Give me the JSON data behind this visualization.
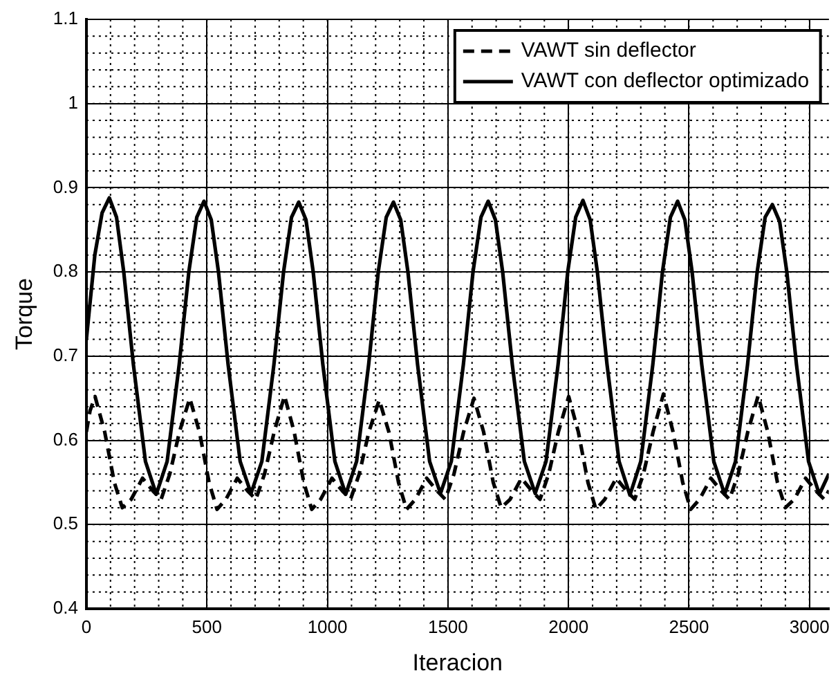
{
  "chart_data": {
    "type": "line",
    "xlabel": "Iteracion",
    "ylabel": "Torque",
    "xlim": [
      0,
      3080
    ],
    "xticks": [
      0,
      500,
      1000,
      1500,
      2000,
      2500,
      3000
    ],
    "ylim": [
      0.4,
      1.1
    ],
    "yticks": [
      0.4,
      0.5,
      0.6,
      0.7,
      0.8,
      0.9,
      1,
      1.1
    ],
    "grid": true,
    "legend": "top right",
    "marker": "none",
    "series": [
      {
        "name": "VAWT sin deflector",
        "color": "#000000",
        "line_style": "dashed",
        "x": [
          0,
          15,
          36,
          76,
          116,
          149,
          186,
          233,
          276,
          310,
          346,
          386,
          429,
          469,
          509,
          542,
          579,
          626,
          669,
          703,
          739,
          779,
          822,
          862,
          902,
          935,
          972,
          1019,
          1062,
          1096,
          1132,
          1172,
          1215,
          1255,
          1295,
          1328,
          1365,
          1412,
          1455,
          1489,
          1525,
          1565,
          1608,
          1648,
          1688,
          1721,
          1758,
          1805,
          1848,
          1882,
          1918,
          1958,
          2001,
          2041,
          2081,
          2114,
          2151,
          2198,
          2241,
          2275,
          2311,
          2351,
          2394,
          2434,
          2474,
          2507,
          2544,
          2591,
          2634,
          2668,
          2704,
          2744,
          2787,
          2827,
          2867,
          2900,
          2937,
          2984,
          3027,
          3061,
          3080
        ],
        "values": [
          0.61,
          0.635,
          0.652,
          0.61,
          0.55,
          0.52,
          0.53,
          0.555,
          0.54,
          0.53,
          0.56,
          0.61,
          0.65,
          0.61,
          0.55,
          0.518,
          0.53,
          0.555,
          0.54,
          0.53,
          0.56,
          0.61,
          0.653,
          0.61,
          0.55,
          0.518,
          0.53,
          0.555,
          0.54,
          0.53,
          0.56,
          0.61,
          0.648,
          0.61,
          0.55,
          0.518,
          0.53,
          0.555,
          0.54,
          0.53,
          0.56,
          0.61,
          0.65,
          0.61,
          0.55,
          0.52,
          0.53,
          0.555,
          0.54,
          0.53,
          0.56,
          0.61,
          0.652,
          0.61,
          0.55,
          0.518,
          0.53,
          0.555,
          0.54,
          0.53,
          0.56,
          0.61,
          0.655,
          0.61,
          0.55,
          0.518,
          0.53,
          0.555,
          0.54,
          0.53,
          0.56,
          0.61,
          0.653,
          0.61,
          0.55,
          0.52,
          0.53,
          0.555,
          0.54,
          0.53,
          0.54
        ]
      },
      {
        "name": "VAWT con deflector optimizado",
        "color": "#000000",
        "line_style": "solid",
        "x": [
          0,
          35,
          65,
          95,
          125,
          155,
          195,
          245,
          290,
          335,
          385,
          425,
          458,
          488,
          518,
          548,
          588,
          638,
          683,
          728,
          778,
          818,
          851,
          881,
          911,
          941,
          981,
          1031,
          1076,
          1121,
          1171,
          1211,
          1244,
          1274,
          1304,
          1334,
          1374,
          1424,
          1469,
          1514,
          1564,
          1604,
          1637,
          1667,
          1697,
          1727,
          1767,
          1817,
          1862,
          1907,
          1957,
          1997,
          2030,
          2060,
          2090,
          2120,
          2160,
          2210,
          2255,
          2300,
          2350,
          2390,
          2423,
          2453,
          2483,
          2513,
          2553,
          2603,
          2648,
          2693,
          2743,
          2783,
          2816,
          2846,
          2876,
          2906,
          2946,
          2996,
          3041,
          3080
        ],
        "values": [
          0.72,
          0.82,
          0.87,
          0.888,
          0.865,
          0.8,
          0.69,
          0.575,
          0.536,
          0.575,
          0.69,
          0.8,
          0.865,
          0.884,
          0.862,
          0.8,
          0.69,
          0.575,
          0.537,
          0.575,
          0.69,
          0.8,
          0.865,
          0.883,
          0.862,
          0.8,
          0.69,
          0.575,
          0.536,
          0.575,
          0.69,
          0.8,
          0.865,
          0.883,
          0.862,
          0.8,
          0.69,
          0.575,
          0.537,
          0.575,
          0.69,
          0.8,
          0.865,
          0.884,
          0.862,
          0.8,
          0.69,
          0.575,
          0.537,
          0.575,
          0.69,
          0.8,
          0.865,
          0.885,
          0.862,
          0.8,
          0.69,
          0.575,
          0.535,
          0.575,
          0.69,
          0.8,
          0.865,
          0.884,
          0.862,
          0.8,
          0.69,
          0.575,
          0.536,
          0.575,
          0.69,
          0.8,
          0.865,
          0.88,
          0.86,
          0.8,
          0.69,
          0.575,
          0.536,
          0.56
        ]
      }
    ]
  }
}
